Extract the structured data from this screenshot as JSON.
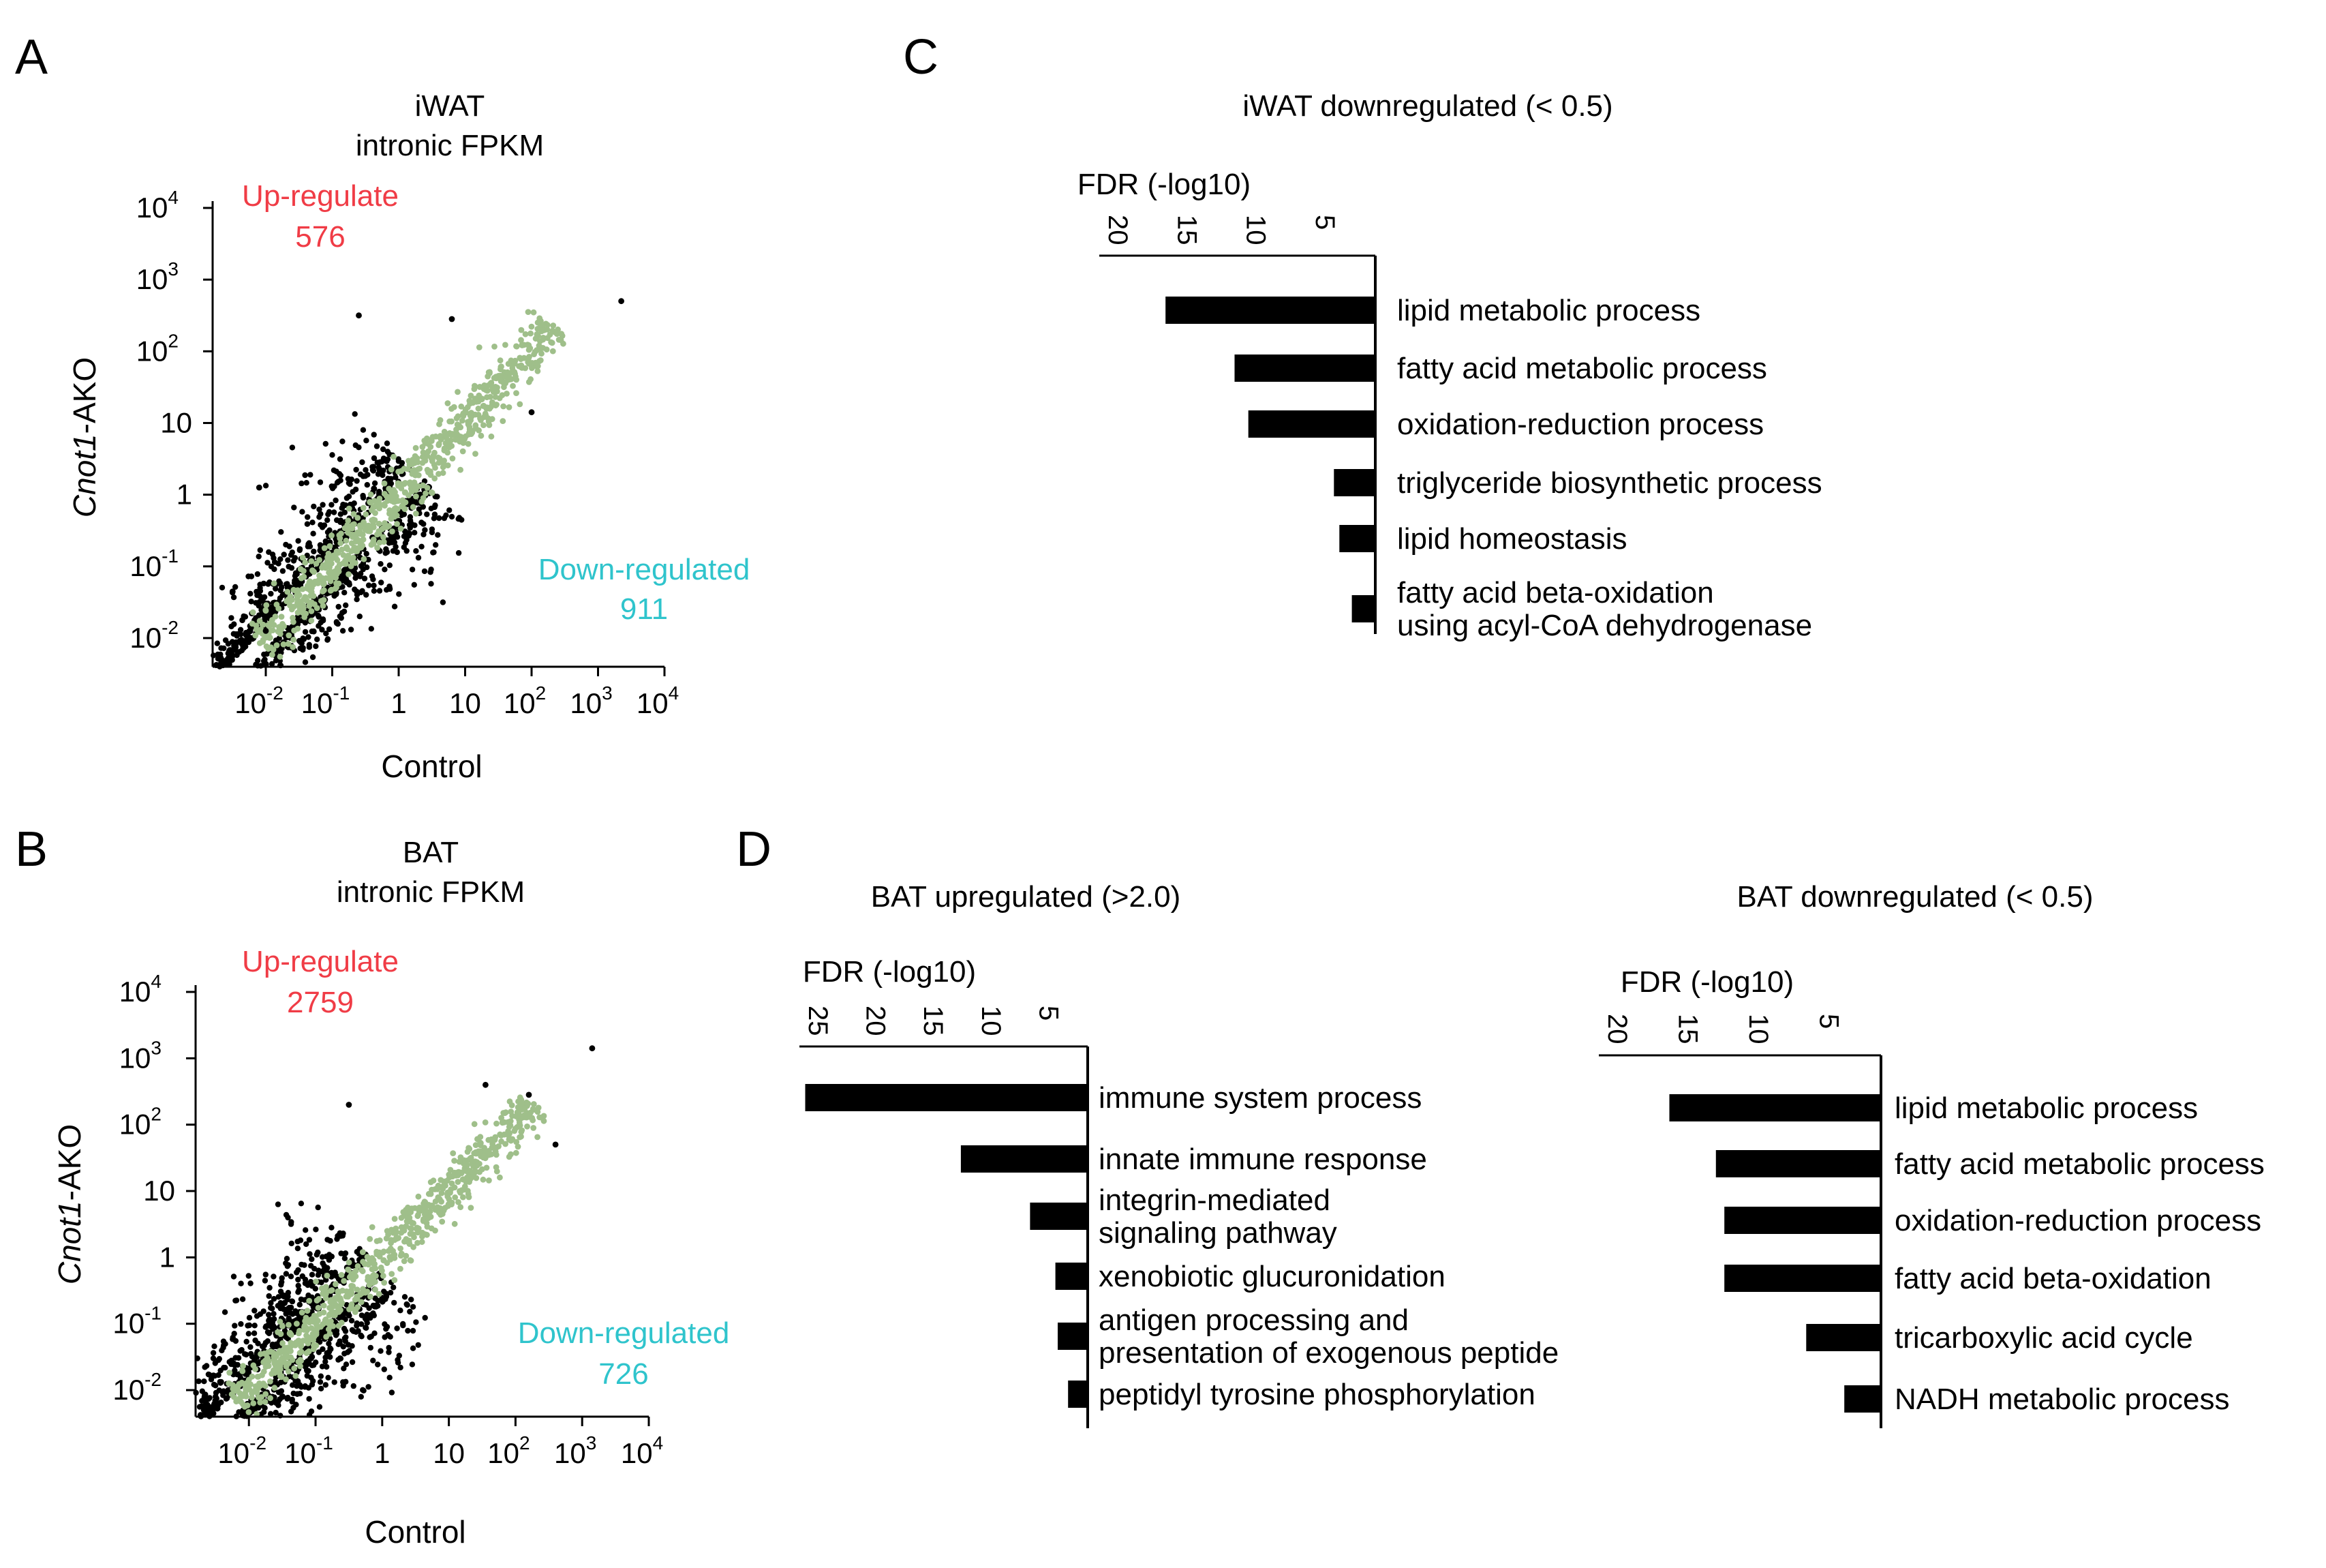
{
  "panels": {
    "A": "A",
    "B": "B",
    "C": "C",
    "D": "D"
  },
  "colors": {
    "up": "#f03c46",
    "down": "#2fc4cc",
    "unchanged": "#9fbf8a",
    "changed": "#000000"
  },
  "chart_data": [
    {
      "id": "A",
      "type": "scatter",
      "title": "iWAT",
      "subtitle": "intronic FPKM",
      "xlabel": "Control",
      "ylabel_italic": "Cnot1",
      "ylabel_rest": "-AKO",
      "scale": "log10",
      "xlim": [
        -2.8,
        4
      ],
      "ylim": [
        -2.4,
        4
      ],
      "x_ticks": [
        {
          "base": "10",
          "exp": "-2"
        },
        {
          "base": "10",
          "exp": "-1"
        },
        {
          "base": "1",
          "exp": ""
        },
        {
          "base": "10",
          "exp": ""
        },
        {
          "base": "10",
          "exp": "2"
        },
        {
          "base": "10",
          "exp": "3"
        },
        {
          "base": "10",
          "exp": "4"
        }
      ],
      "y_ticks": [
        {
          "base": "10",
          "exp": "-2"
        },
        {
          "base": "10",
          "exp": "-1"
        },
        {
          "base": "1",
          "exp": ""
        },
        {
          "base": "10",
          "exp": ""
        },
        {
          "base": "10",
          "exp": "2"
        },
        {
          "base": "10",
          "exp": "3"
        },
        {
          "base": "10",
          "exp": "4"
        }
      ],
      "up_label": "Up-regulate",
      "up_count": "576",
      "down_label": "Down-regulated",
      "down_count": "911",
      "series": [
        {
          "name": "unchanged",
          "band_log10": [
            -2.1,
            2.35
          ],
          "count": 700,
          "spread": 0.22
        },
        {
          "name": "changed",
          "band_log10": [
            -2.0,
            2.3
          ],
          "count": 1400,
          "spread": 0.75
        }
      ],
      "outliers": [
        [
          3.35,
          2.7
        ],
        [
          2.0,
          1.15
        ],
        [
          -0.6,
          2.5
        ],
        [
          -2.5,
          -1.35
        ],
        [
          -2.1,
          0.1
        ],
        [
          -2.0,
          -1.9
        ],
        [
          0.8,
          2.45
        ]
      ]
    },
    {
      "id": "B",
      "type": "scatter",
      "title": "BAT",
      "subtitle": "intronic FPKM",
      "xlabel": "Control",
      "ylabel_italic": "Cnot1",
      "ylabel_rest": "-AKO",
      "scale": "log10",
      "xlim": [
        -2.8,
        4
      ],
      "ylim": [
        -2.4,
        4
      ],
      "x_ticks": [
        {
          "base": "10",
          "exp": "-2"
        },
        {
          "base": "10",
          "exp": "-1"
        },
        {
          "base": "1",
          "exp": ""
        },
        {
          "base": "10",
          "exp": ""
        },
        {
          "base": "10",
          "exp": "2"
        },
        {
          "base": "10",
          "exp": "3"
        },
        {
          "base": "10",
          "exp": "4"
        }
      ],
      "y_ticks": [
        {
          "base": "10",
          "exp": "-2"
        },
        {
          "base": "10",
          "exp": "-1"
        },
        {
          "base": "1",
          "exp": ""
        },
        {
          "base": "10",
          "exp": ""
        },
        {
          "base": "10",
          "exp": "2"
        },
        {
          "base": "10",
          "exp": "3"
        },
        {
          "base": "10",
          "exp": "4"
        }
      ],
      "up_label": "Up-regulate",
      "up_count": "2759",
      "down_label": "Down-regulated",
      "down_count": "726",
      "series": [
        {
          "name": "unchanged",
          "band_log10": [
            -2.2,
            2.3
          ],
          "count": 700,
          "spread": 0.22
        },
        {
          "name": "changed",
          "band_log10": [
            -2.3,
            2.2
          ],
          "count": 1800,
          "spread": 0.85
        }
      ],
      "outliers": [
        [
          3.15,
          3.15
        ],
        [
          2.2,
          2.45
        ],
        [
          1.55,
          2.6
        ],
        [
          -0.5,
          2.3
        ],
        [
          -2.5,
          -2.1
        ],
        [
          2.6,
          1.7
        ]
      ]
    },
    {
      "id": "C",
      "type": "bar",
      "orientation": "horizontal-left",
      "title": "iWAT downregulated (< 0.5)",
      "xlabel": "FDR (-log10)",
      "xlim": [
        0,
        20
      ],
      "x_ticks": [
        "20",
        "15",
        "10",
        "5"
      ],
      "categories": [
        [
          "lipid metabolic process"
        ],
        [
          "fatty acid metabolic process"
        ],
        [
          "oxidation-reduction process"
        ],
        [
          "triglyceride biosynthetic process"
        ],
        [
          "lipid homeostasis"
        ],
        [
          "fatty acid beta-oxidation",
          "using acyl-CoA dehydrogenase"
        ]
      ],
      "values": [
        15.2,
        10.2,
        9.2,
        3.0,
        2.6,
        1.7
      ]
    },
    {
      "id": "D1",
      "type": "bar",
      "orientation": "horizontal-left",
      "title": "BAT upregulated (>2.0)",
      "xlabel": "FDR (-log10)",
      "xlim": [
        0,
        25
      ],
      "x_ticks": [
        "25",
        "20",
        "15",
        "10",
        "5"
      ],
      "categories": [
        [
          "immune system process"
        ],
        [
          "innate immune response"
        ],
        [
          "integrin-mediated",
          "signaling pathway"
        ],
        [
          "xenobiotic glucuronidation"
        ],
        [
          "antigen processing and",
          "presentation of exogenous peptide"
        ],
        [
          "peptidyl tyrosine phosphorylation"
        ]
      ],
      "values": [
        24.5,
        11.0,
        5.0,
        2.8,
        2.6,
        1.7
      ]
    },
    {
      "id": "D2",
      "type": "bar",
      "orientation": "horizontal-left",
      "title": "BAT downregulated (< 0.5)",
      "xlabel": "FDR (-log10)",
      "xlim": [
        0,
        20
      ],
      "x_ticks": [
        "20",
        "15",
        "10",
        "5"
      ],
      "categories": [
        [
          "lipid metabolic process"
        ],
        [
          "fatty acid metabolic process"
        ],
        [
          "oxidation-reduction process"
        ],
        [
          "fatty acid beta-oxidation"
        ],
        [
          "tricarboxylic acid cycle"
        ],
        [
          "NADH metabolic process"
        ]
      ],
      "values": [
        15.0,
        11.7,
        11.1,
        11.1,
        5.3,
        2.6
      ]
    }
  ]
}
